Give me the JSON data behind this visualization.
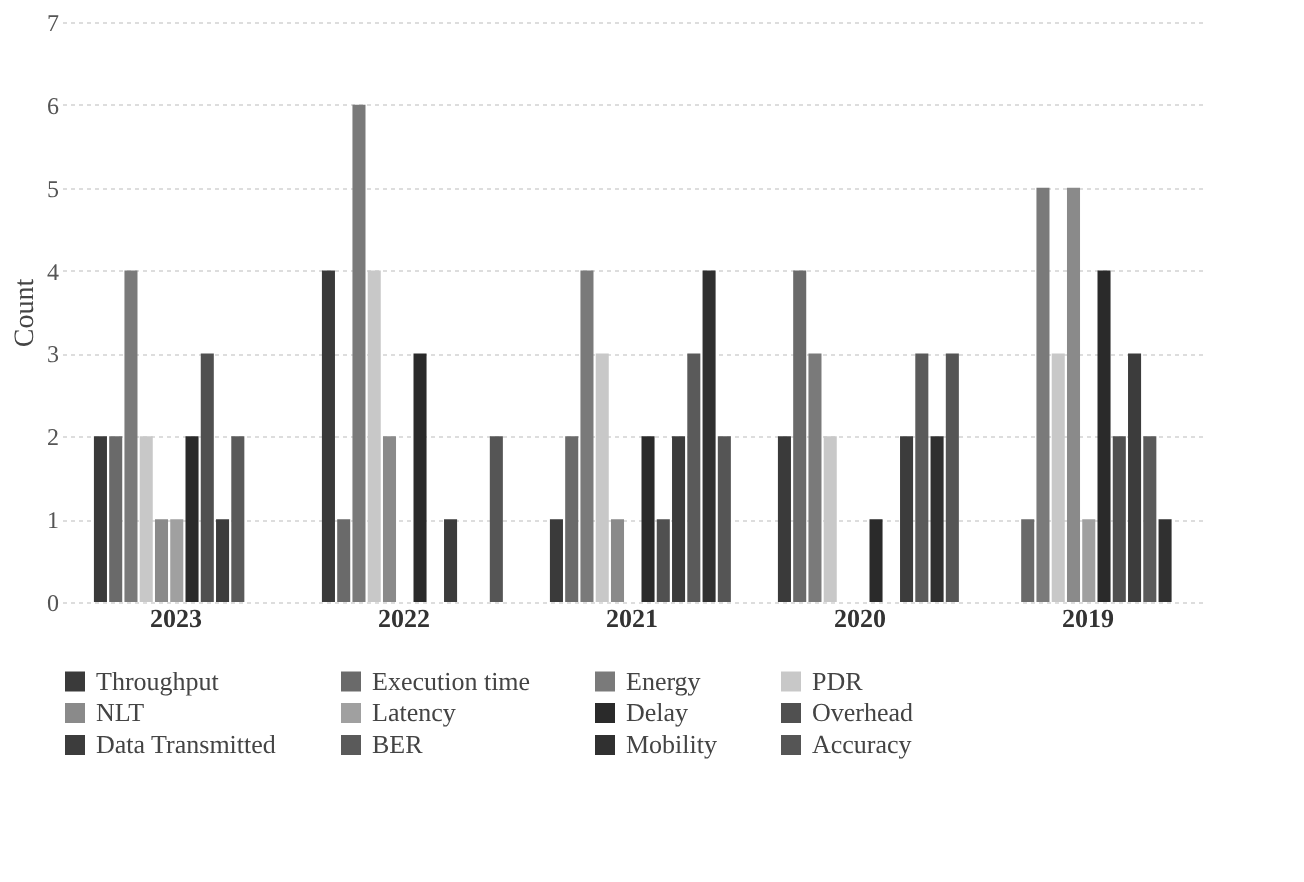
{
  "chart_data": {
    "type": "bar",
    "ylabel": "Count",
    "categories": [
      "2023",
      "2022",
      "2021",
      "2020",
      "2019"
    ],
    "series": [
      {
        "name": "Throughput",
        "color": "#3a3a3a",
        "values": [
          2,
          4,
          1,
          2,
          0
        ]
      },
      {
        "name": "Execution time",
        "color": "#6a6a6a",
        "values": [
          2,
          1,
          2,
          4,
          1
        ]
      },
      {
        "name": "Energy",
        "color": "#7a7a7a",
        "values": [
          4,
          6,
          4,
          3,
          5
        ]
      },
      {
        "name": "PDR",
        "color": "#c8c8c8",
        "values": [
          2,
          4,
          3,
          2,
          3
        ]
      },
      {
        "name": "NLT",
        "color": "#8a8a8a",
        "values": [
          1,
          2,
          1,
          0,
          5
        ]
      },
      {
        "name": "Latency",
        "color": "#a0a0a0",
        "values": [
          1,
          0,
          0,
          0,
          1
        ]
      },
      {
        "name": "Delay",
        "color": "#2a2a2a",
        "values": [
          2,
          3,
          2,
          1,
          4
        ]
      },
      {
        "name": "Overhead",
        "color": "#505050",
        "values": [
          3,
          0,
          1,
          0,
          2
        ]
      },
      {
        "name": "Data Transmitted",
        "color": "#3c3c3c",
        "values": [
          1,
          1,
          2,
          2,
          3
        ]
      },
      {
        "name": "BER",
        "color": "#5a5a5a",
        "values": [
          2,
          0,
          3,
          3,
          2
        ]
      },
      {
        "name": "Mobility",
        "color": "#303030",
        "values": [
          0,
          0,
          4,
          2,
          1
        ]
      },
      {
        "name": "Accuracy",
        "color": "#555555",
        "values": [
          0,
          2,
          2,
          3,
          0
        ]
      }
    ],
    "ylim": [
      0,
      7
    ],
    "yticks": [
      0,
      1,
      2,
      3,
      4,
      5,
      6,
      7
    ],
    "grid": "y",
    "legend": "bottom"
  }
}
